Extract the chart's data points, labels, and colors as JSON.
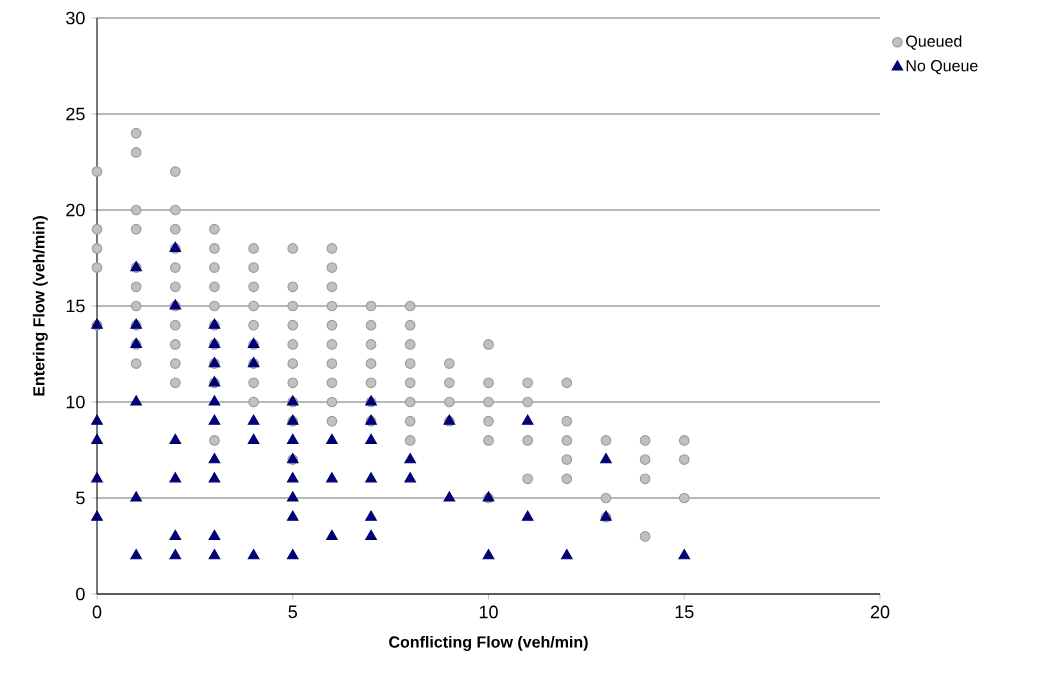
{
  "chart_data": {
    "type": "scatter",
    "xlabel": "Conflicting Flow (veh/min)",
    "ylabel": "Entering Flow (veh/min)",
    "xlim": [
      0,
      20
    ],
    "xticks": [
      0,
      5,
      10,
      15,
      20
    ],
    "ylim": [
      0,
      30
    ],
    "yticks": [
      0,
      5,
      10,
      15,
      20,
      25,
      30
    ],
    "grid": "y",
    "legend": "right",
    "series": [
      {
        "name": "Queued",
        "color": "#c0c0c0",
        "marker": "circle",
        "x": [
          0,
          0,
          0,
          0,
          0,
          1,
          1,
          1,
          1,
          1,
          1,
          1,
          1,
          1,
          1,
          2,
          2,
          2,
          2,
          2,
          2,
          2,
          2,
          2,
          2,
          2,
          3,
          3,
          3,
          3,
          3,
          3,
          3,
          3,
          3,
          3,
          4,
          4,
          4,
          4,
          4,
          4,
          4,
          4,
          4,
          5,
          5,
          5,
          5,
          5,
          5,
          5,
          5,
          5,
          5,
          6,
          6,
          6,
          6,
          6,
          6,
          6,
          6,
          6,
          6,
          7,
          7,
          7,
          7,
          7,
          7,
          7,
          8,
          8,
          8,
          8,
          8,
          8,
          8,
          8,
          9,
          9,
          9,
          9,
          10,
          10,
          10,
          10,
          10,
          10,
          11,
          11,
          11,
          11,
          12,
          12,
          12,
          12,
          12,
          13,
          13,
          13,
          14,
          14,
          14,
          14,
          15,
          15,
          15
        ],
        "values": [
          22,
          19,
          18,
          17,
          14,
          24,
          23,
          20,
          19,
          17,
          16,
          15,
          14,
          13,
          12,
          22,
          20,
          19,
          18,
          17,
          16,
          15,
          14,
          13,
          12,
          11,
          19,
          18,
          17,
          16,
          15,
          14,
          13,
          12,
          11,
          8,
          18,
          17,
          16,
          15,
          14,
          13,
          12,
          11,
          10,
          18,
          16,
          15,
          14,
          13,
          12,
          11,
          10,
          9,
          7,
          18,
          17,
          16,
          15,
          14,
          13,
          12,
          11,
          10,
          9,
          15,
          14,
          13,
          12,
          11,
          10,
          9,
          15,
          14,
          13,
          12,
          11,
          10,
          9,
          8,
          12,
          11,
          10,
          9,
          13,
          11,
          10,
          9,
          8,
          5,
          11,
          10,
          8,
          6,
          11,
          9,
          8,
          7,
          6,
          8,
          5,
          4,
          8,
          7,
          6,
          3,
          8,
          7,
          5
        ]
      },
      {
        "name": "No Queue",
        "color": "#000080",
        "marker": "triangle",
        "x": [
          0,
          0,
          0,
          0,
          0,
          1,
          1,
          1,
          1,
          1,
          1,
          2,
          2,
          2,
          2,
          2,
          2,
          3,
          3,
          3,
          3,
          3,
          3,
          3,
          3,
          3,
          3,
          4,
          4,
          4,
          4,
          4,
          5,
          5,
          5,
          5,
          5,
          5,
          5,
          5,
          6,
          6,
          6,
          7,
          7,
          7,
          7,
          7,
          7,
          8,
          8,
          9,
          9,
          10,
          10,
          11,
          11,
          12,
          13,
          13,
          15
        ],
        "values": [
          14,
          9,
          8,
          6,
          4,
          17,
          14,
          13,
          10,
          5,
          2,
          18,
          15,
          8,
          6,
          3,
          2,
          14,
          13,
          12,
          11,
          10,
          9,
          7,
          6,
          3,
          2,
          13,
          12,
          9,
          8,
          2,
          10,
          9,
          8,
          7,
          6,
          5,
          4,
          2,
          8,
          6,
          3,
          10,
          9,
          8,
          6,
          4,
          3,
          7,
          6,
          9,
          5,
          5,
          2,
          9,
          4,
          2,
          7,
          4,
          2
        ]
      }
    ]
  }
}
